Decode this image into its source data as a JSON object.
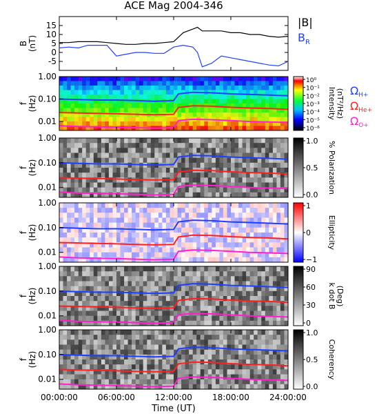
{
  "title": "ACE Mag 2004-346",
  "xlabel": "Time (UT)",
  "x_ticks": [
    "00:00:00",
    "06:00:00",
    "12:00:00",
    "18:00:00",
    "24:00:00"
  ],
  "chart_data": [
    {
      "type": "line",
      "panel": "B",
      "ylabel": [
        "B",
        "(nT)"
      ],
      "ylim": [
        -10,
        20
      ],
      "yticks": [
        -5,
        0,
        5,
        10,
        15
      ],
      "series": [
        {
          "name": "|B|",
          "color": "#000000",
          "x": [
            0,
            1,
            2,
            3,
            4,
            5,
            6,
            7,
            8,
            9,
            10,
            11,
            12,
            13,
            14,
            14.5,
            15,
            16,
            17,
            18,
            19,
            20,
            21,
            22,
            23,
            24
          ],
          "values": [
            5.5,
            5.5,
            6,
            6,
            6,
            5.5,
            5,
            4.5,
            4.5,
            5,
            5,
            5.5,
            6,
            11,
            13,
            14,
            12,
            12,
            12,
            11,
            11,
            10,
            10,
            9,
            8.5,
            9
          ]
        },
        {
          "name": "B",
          "subscript": "R",
          "color": "#1f3fff",
          "x": [
            0,
            1,
            2,
            3,
            4,
            5,
            6,
            7,
            8,
            9,
            10,
            11,
            12,
            13,
            14,
            14.5,
            15,
            16,
            17,
            18,
            19,
            20,
            21,
            22,
            23,
            24
          ],
          "values": [
            2.5,
            3,
            2.5,
            4,
            4,
            4,
            -2,
            -1,
            0,
            0,
            -0.5,
            -0.5,
            3,
            4,
            3,
            0,
            -8,
            -6,
            -2,
            -3,
            -4,
            -5,
            -6,
            -7,
            -7.5,
            -5
          ]
        }
      ]
    },
    {
      "type": "heatmap",
      "panel": "spectrogram-intensity",
      "ylabel": [
        "f",
        "(Hz)"
      ],
      "ylim": [
        0.004,
        1.0
      ],
      "yscale": "log",
      "yticks": [
        "1.00",
        "0.10",
        "0.01"
      ],
      "colorbar": {
        "label": [
          "Intensity",
          "(nT²/Hz)"
        ],
        "ticks": [
          "10⁰",
          "10⁻¹",
          "10⁻²",
          "10⁻³",
          "10⁻⁴",
          "10⁻⁵",
          "10⁻⁶"
        ]
      },
      "legend": [
        {
          "name": "Ω",
          "subscript": "H+",
          "color": "#1f3fff"
        },
        {
          "name": "Ω",
          "subscript": "He+",
          "color": "#ff2020"
        },
        {
          "name": "Ω",
          "subscript": "O+",
          "color": "#ff20d0"
        }
      ]
    },
    {
      "type": "heatmap",
      "panel": "spectrogram-polarization",
      "ylabel": [
        "f",
        "(Hz)"
      ],
      "ylim": [
        0.004,
        1.0
      ],
      "yscale": "log",
      "yticks": [
        "1.00",
        "0.10",
        "0.01"
      ],
      "colorbar": {
        "label": [
          "% Polarization"
        ],
        "ticks": [
          "1.0",
          "0.5",
          "0.0"
        ]
      }
    },
    {
      "type": "heatmap",
      "panel": "spectrogram-ellipticity",
      "ylabel": [
        "f",
        "(Hz)"
      ],
      "ylim": [
        0.004,
        1.0
      ],
      "yscale": "log",
      "yticks": [
        "1.00",
        "0.10",
        "0.01"
      ],
      "colorbar": {
        "label": [
          "Ellipticity"
        ],
        "ticks": [
          "1",
          "0",
          "−1"
        ]
      }
    },
    {
      "type": "heatmap",
      "panel": "spectrogram-kdotb",
      "ylabel": [
        "f",
        "(Hz)"
      ],
      "ylim": [
        0.004,
        1.0
      ],
      "yscale": "log",
      "yticks": [
        "1.00",
        "0.10",
        "0.01"
      ],
      "colorbar": {
        "label": [
          "k dot B",
          "(Deg)"
        ],
        "ticks": [
          "90",
          "60",
          "30",
          "0"
        ]
      }
    },
    {
      "type": "heatmap",
      "panel": "spectrogram-coherency",
      "ylabel": [
        "f",
        "(Hz)"
      ],
      "ylim": [
        0.004,
        1.0
      ],
      "yscale": "log",
      "yticks": [
        "1.00",
        "0.10",
        "0.01"
      ],
      "colorbar": {
        "label": [
          "Coherency"
        ],
        "ticks": [
          "1.0",
          "0.5",
          "0.0"
        ]
      }
    }
  ],
  "gyrofrequency_lines": {
    "x": [
      0,
      2,
      4,
      6,
      8,
      10,
      12,
      12.5,
      14,
      16,
      18,
      20,
      22,
      24
    ],
    "H+": [
      0.1,
      0.095,
      0.09,
      0.09,
      0.085,
      0.08,
      0.085,
      0.17,
      0.2,
      0.19,
      0.17,
      0.16,
      0.15,
      0.14
    ],
    "He+": [
      0.025,
      0.024,
      0.023,
      0.022,
      0.021,
      0.02,
      0.021,
      0.042,
      0.05,
      0.048,
      0.043,
      0.04,
      0.038,
      0.035
    ],
    "O+": [
      0.0065,
      0.006,
      0.0058,
      0.0056,
      0.0053,
      0.005,
      0.0053,
      0.011,
      0.0125,
      0.012,
      0.011,
      0.01,
      0.0095,
      0.009
    ]
  }
}
